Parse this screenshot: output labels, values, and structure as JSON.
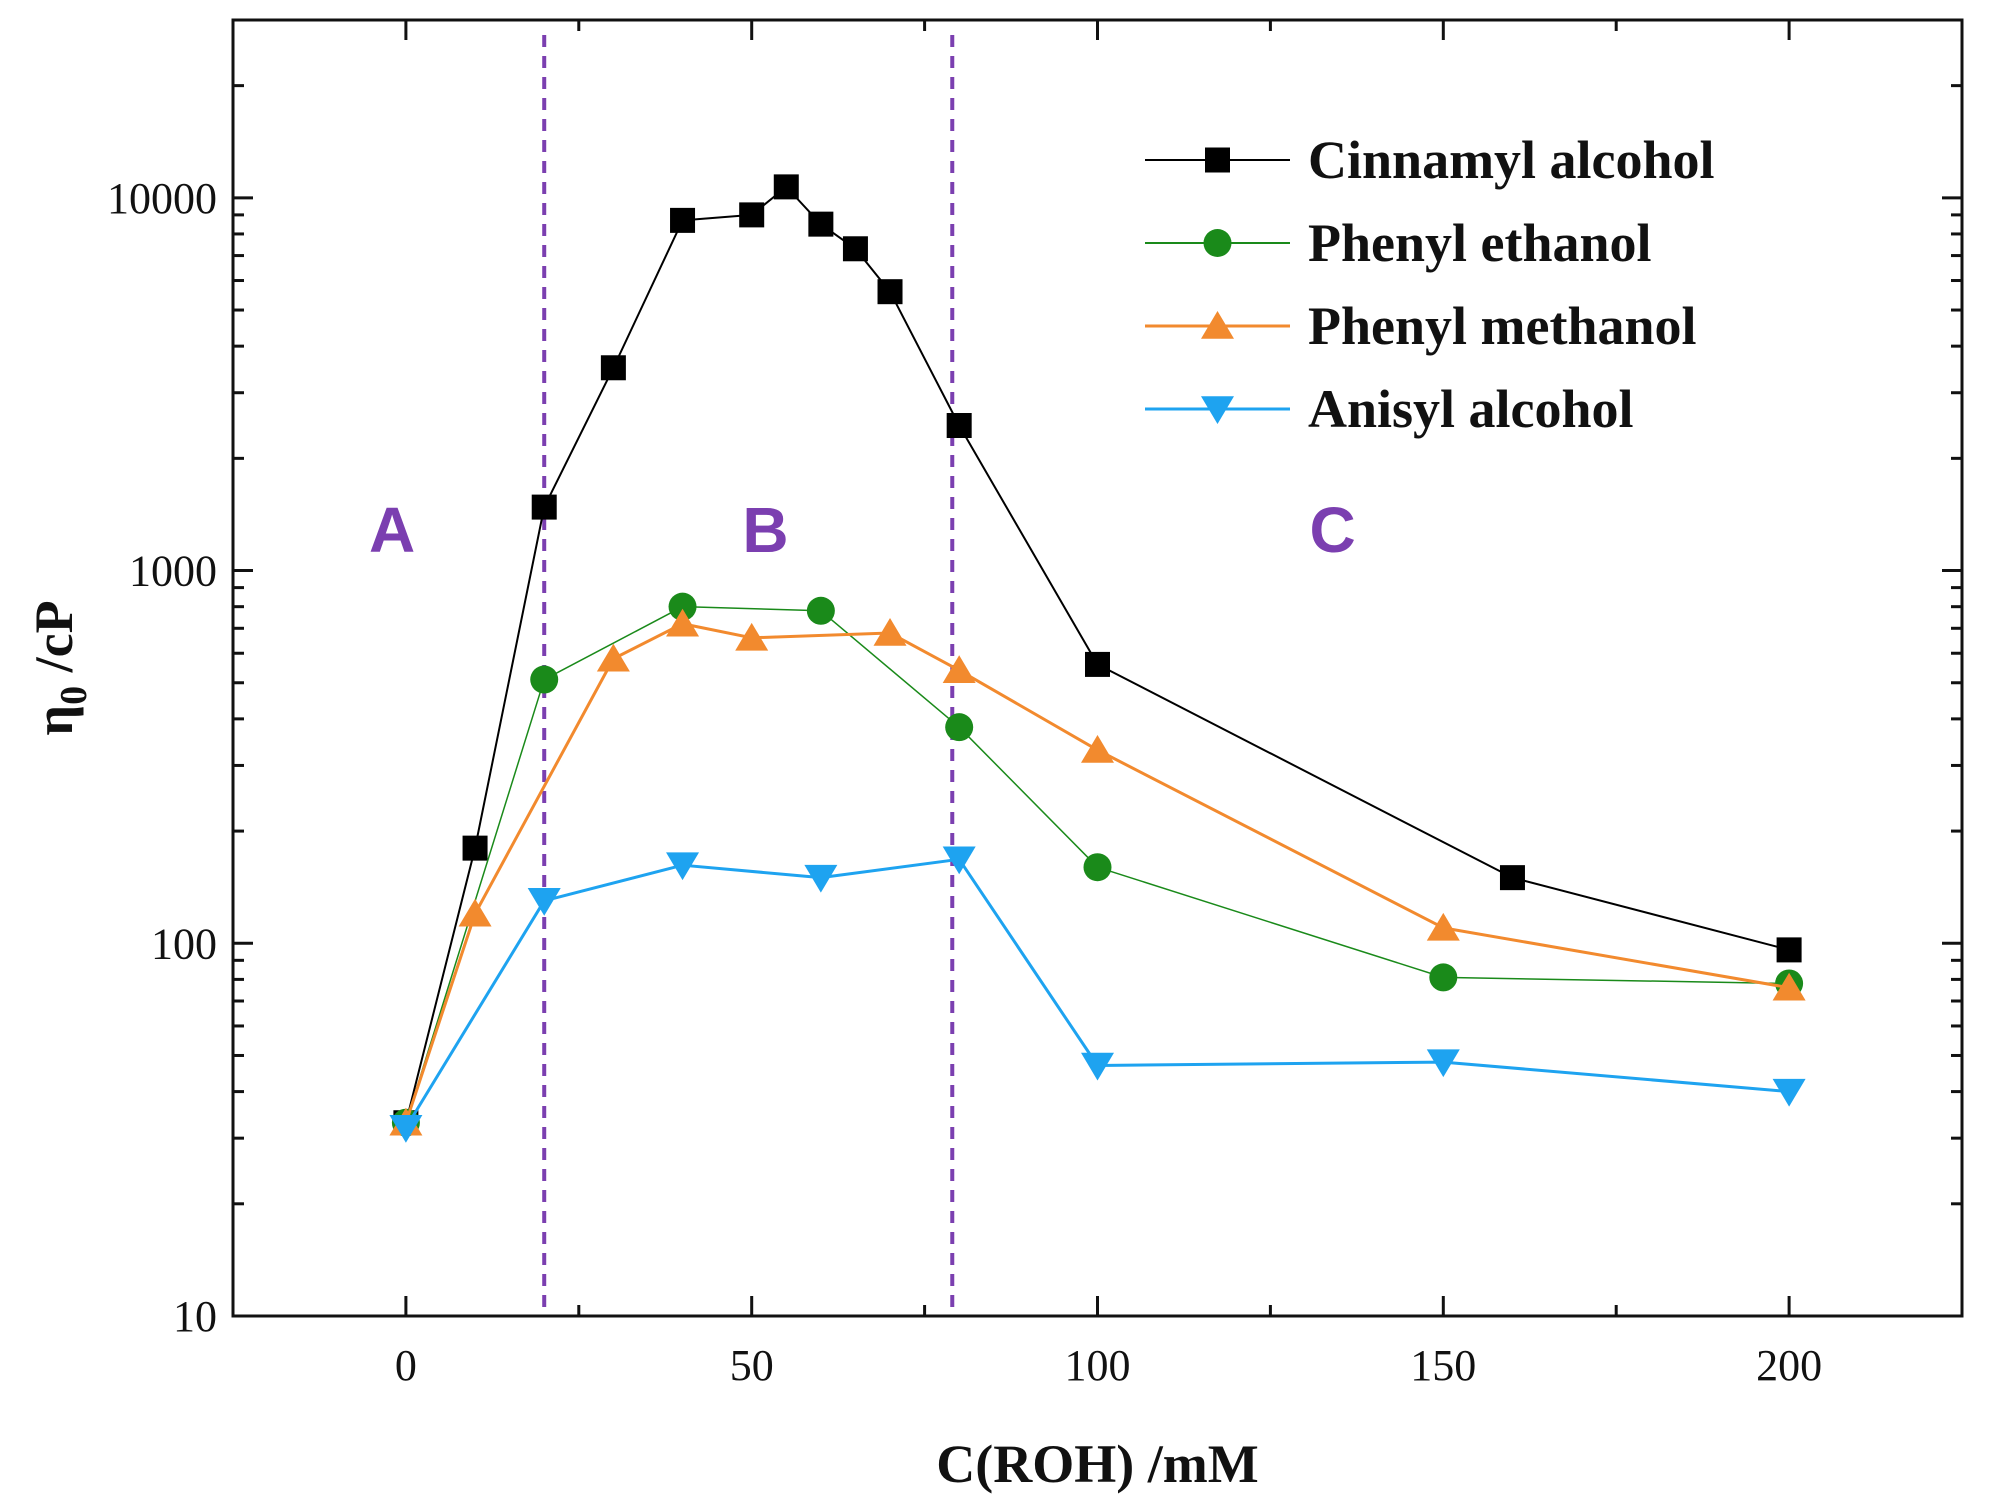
{
  "chart_data": {
    "type": "line",
    "title": "",
    "xlabel": "C(ROH) /mM",
    "ylabel_main": "η",
    "ylabel_sub": "0",
    "ylabel_unit": " /cP",
    "xlim": [
      -25,
      225
    ],
    "ylim": [
      10,
      30000
    ],
    "yscale": "log",
    "xticks": [
      0,
      50,
      100,
      150,
      200
    ],
    "xtick_labels": [
      "0",
      "50",
      "100",
      "150",
      "200"
    ],
    "yticks": [
      10,
      100,
      1000,
      10000
    ],
    "ytick_labels": [
      "10",
      "100",
      "1000",
      "10000"
    ],
    "legend_position": "top-right",
    "vlines": [
      {
        "x": 20,
        "color": "#7B3FB0"
      },
      {
        "x": 79,
        "color": "#7B3FB0"
      }
    ],
    "region_labels": [
      {
        "text": "A",
        "x": -2,
        "y": 1300,
        "color": "#7B3FB0"
      },
      {
        "text": "B",
        "x": 52,
        "y": 1300,
        "color": "#7B3FB0"
      },
      {
        "text": "C",
        "x": 134,
        "y": 1300,
        "color": "#7B3FB0"
      }
    ],
    "series": [
      {
        "name": "Cinnamyl alcohol",
        "color": "#000000",
        "marker": "square",
        "line_width": 2,
        "x": [
          0,
          10,
          20,
          30,
          40,
          50,
          55,
          60,
          65,
          70,
          80,
          100,
          160,
          200
        ],
        "y": [
          33,
          180,
          1480,
          3500,
          8700,
          9000,
          10700,
          8500,
          7300,
          5600,
          2450,
          560,
          150,
          96
        ]
      },
      {
        "name": "Phenyl ethanol",
        "color": "#1A8A1A",
        "marker": "circle",
        "line_width": 1.5,
        "x": [
          0,
          20,
          40,
          60,
          80,
          100,
          150,
          200
        ],
        "y": [
          33,
          510,
          800,
          780,
          380,
          160,
          81,
          78
        ]
      },
      {
        "name": "Phenyl methanol",
        "color": "#F28A2E",
        "marker": "triangle-up",
        "line_width": 3,
        "x": [
          0,
          10,
          30,
          40,
          50,
          70,
          80,
          100,
          150,
          200
        ],
        "y": [
          33,
          120,
          580,
          720,
          660,
          680,
          540,
          330,
          110,
          76
        ]
      },
      {
        "name": "Anisyl alcohol",
        "color": "#1EA3F0",
        "marker": "triangle-down",
        "line_width": 3,
        "x": [
          0,
          20,
          40,
          60,
          80,
          100,
          150,
          200
        ],
        "y": [
          32,
          130,
          162,
          150,
          168,
          47,
          48,
          40
        ]
      }
    ]
  }
}
